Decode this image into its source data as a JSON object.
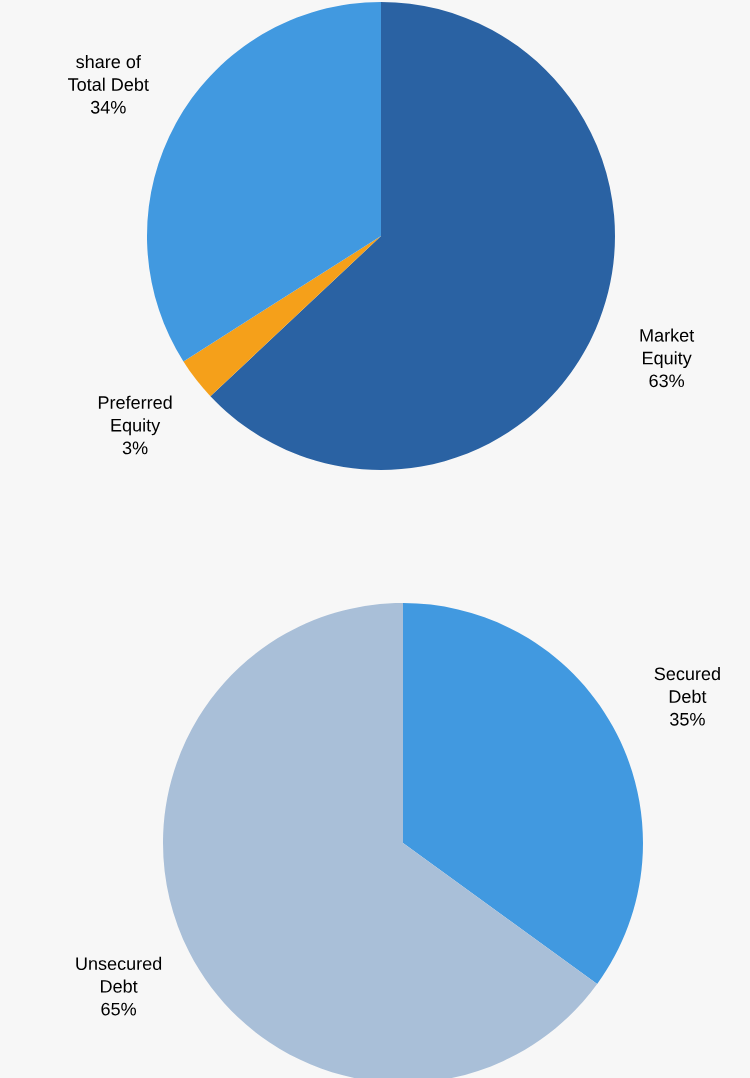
{
  "chart_data": [
    {
      "type": "pie",
      "categories": [
        "Market\nEquity",
        "Preferred\nEquity",
        "share of\nTotal Debt"
      ],
      "values": [
        63,
        3,
        34
      ],
      "value_labels": [
        "63%",
        "3%",
        "34%"
      ],
      "colors": [
        "#2a62a3",
        "#f5a01a",
        "#4199e0"
      ]
    },
    {
      "type": "pie",
      "categories": [
        "Secured\nDebt",
        "Unsecured\nDebt"
      ],
      "values": [
        35,
        65
      ],
      "value_labels": [
        "35%",
        "65%"
      ],
      "colors": [
        "#4199e0",
        "#a9bfd8"
      ]
    }
  ]
}
